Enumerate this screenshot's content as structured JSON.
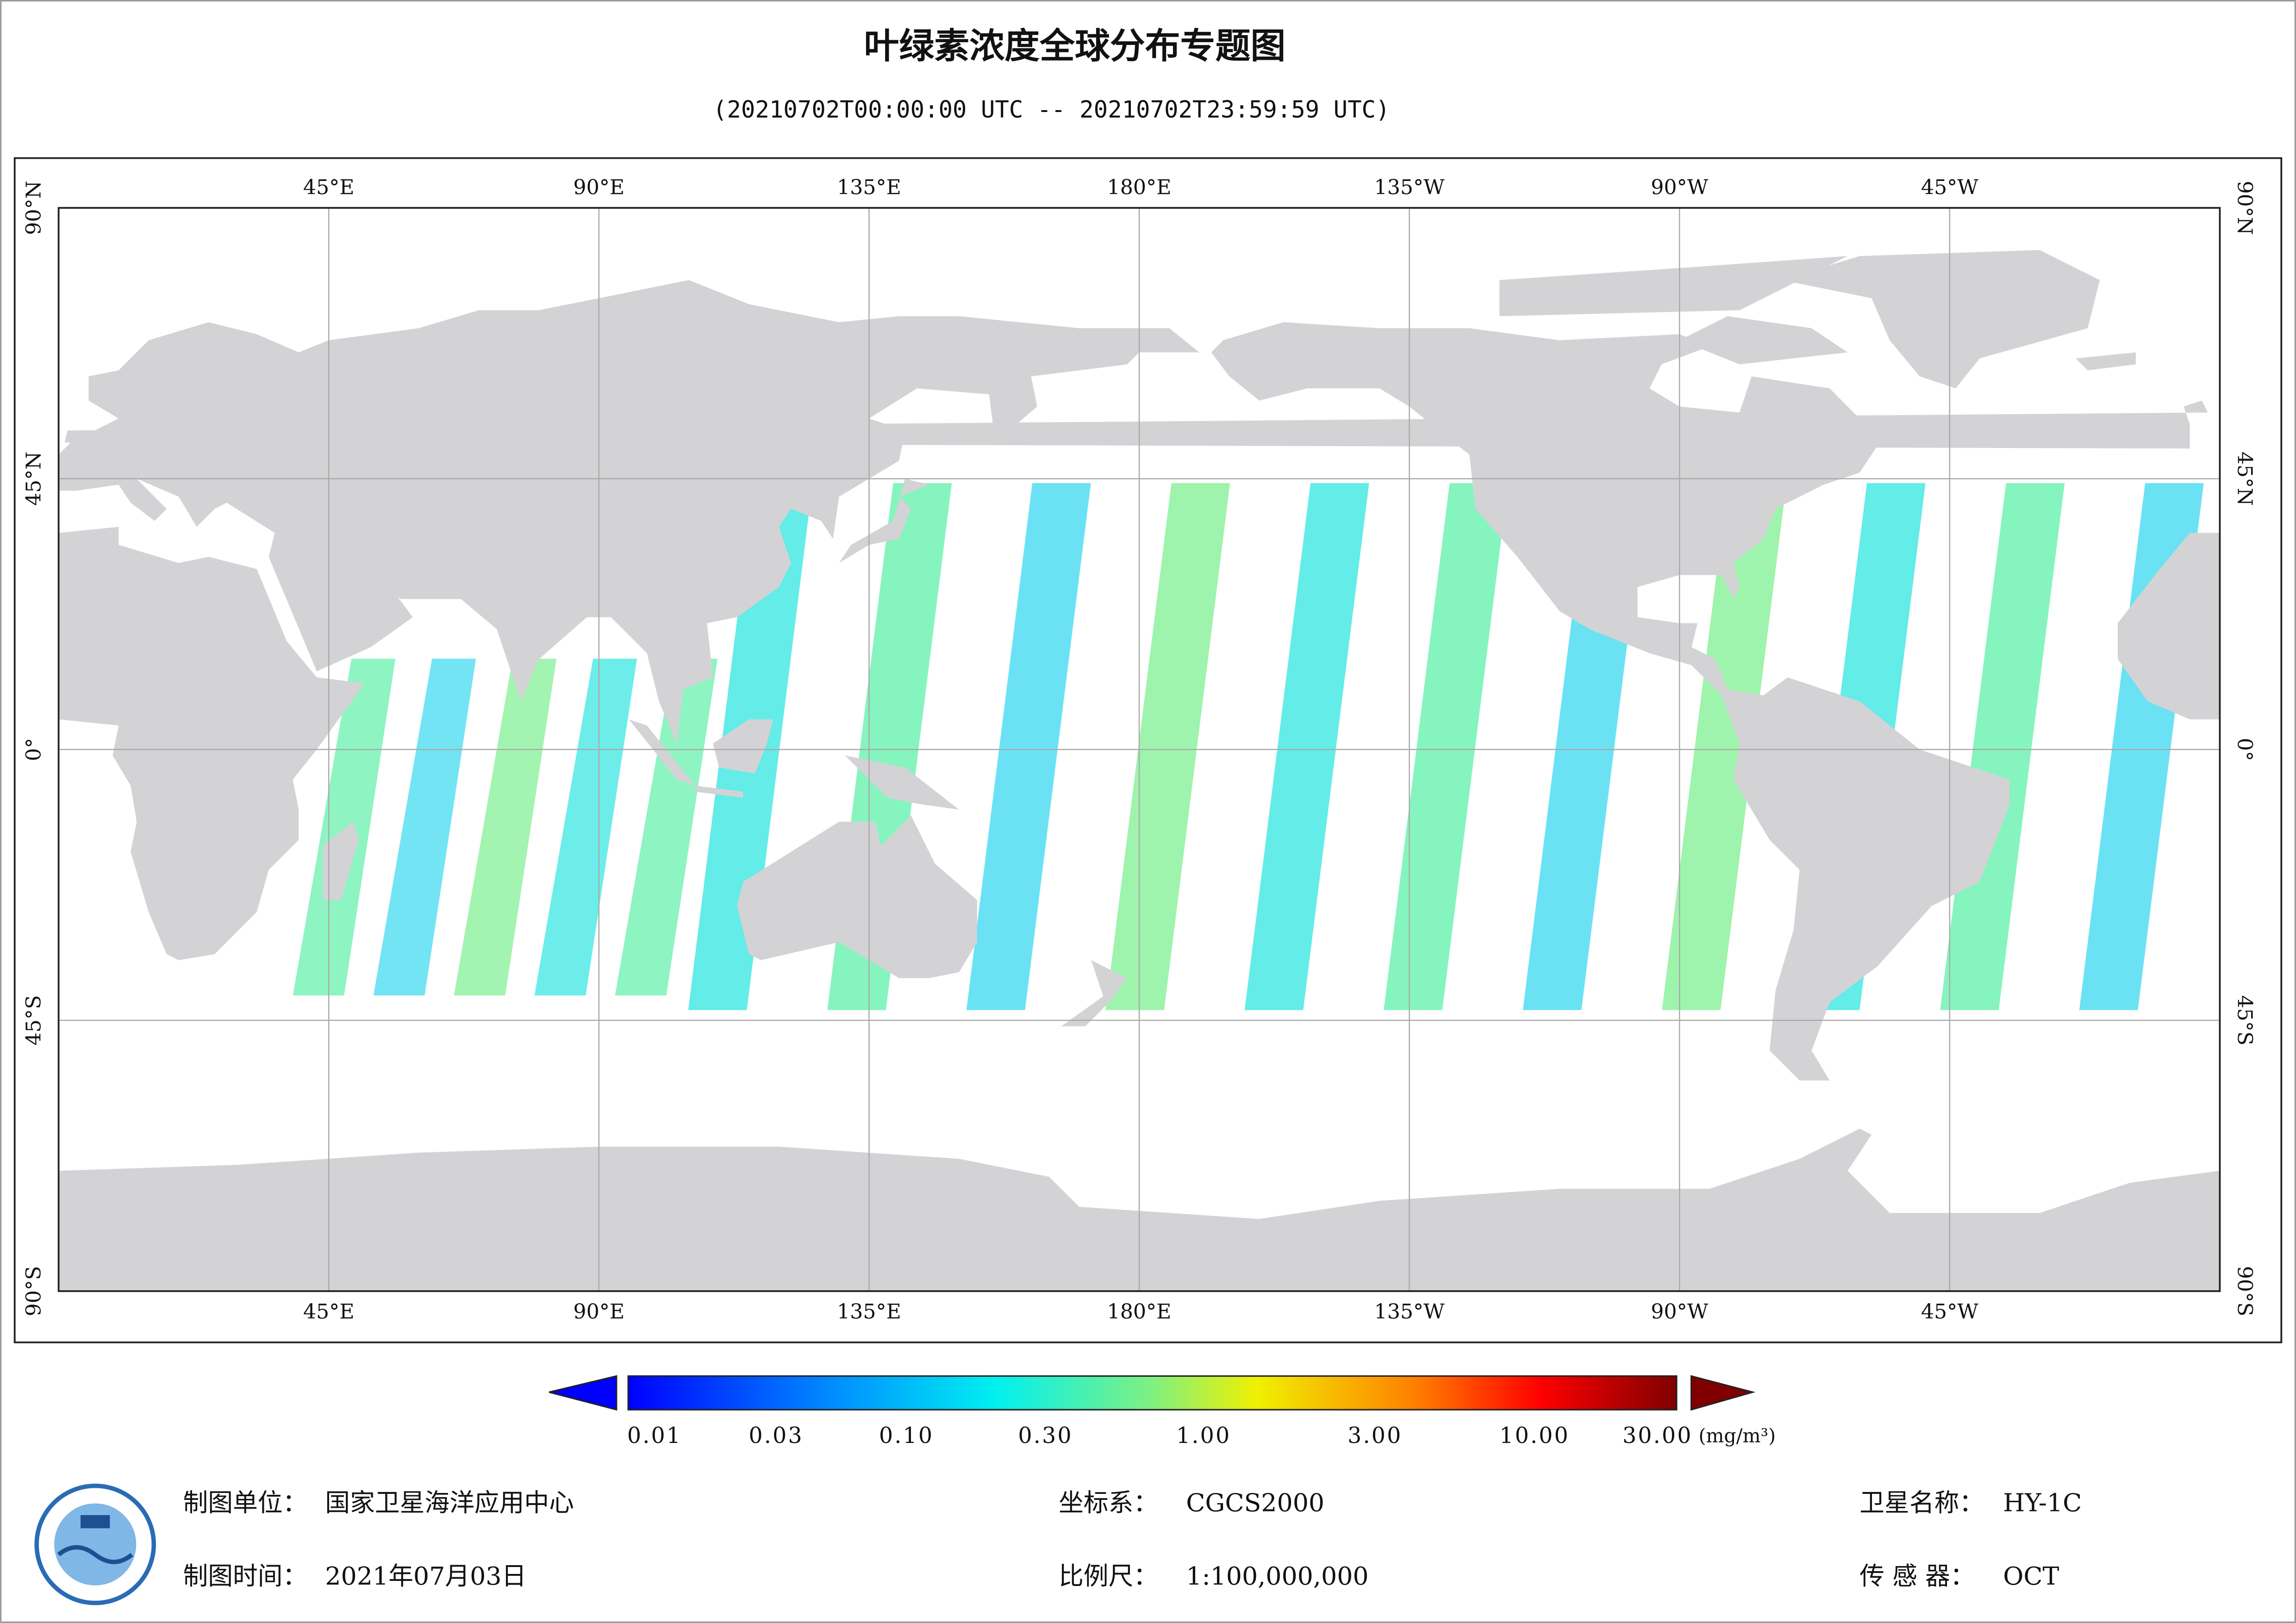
{
  "title": "叶绿素浓度全球分布专题图",
  "subtitle": "(20210702T00:00:00 UTC -- 20210702T23:59:59 UTC)",
  "map": {
    "lon_labels": [
      "45°E",
      "90°E",
      "135°E",
      "180°E",
      "135°W",
      "90°W",
      "45°W"
    ],
    "lat_labels": [
      "90°N",
      "45°N",
      "0°",
      "45°S",
      "90°S"
    ]
  },
  "colorbar": {
    "ticks": [
      "0.01",
      "0.03",
      "0.10",
      "0.30",
      "1.00",
      "3.00",
      "10.00",
      "30.00"
    ],
    "unit": "(mg/m³)"
  },
  "footer": {
    "unit": {
      "label": "制图单位：",
      "value": "国家卫星海洋应用中心"
    },
    "time": {
      "label": "制图时间：",
      "value": "2021年07月03日"
    },
    "crs": {
      "label": "坐标系：",
      "value": "CGCS2000"
    },
    "scale": {
      "label": "比例尺：",
      "value": "1:100,000,000"
    },
    "satellite": {
      "label": "卫星名称：",
      "value": "HY-1C"
    },
    "sensor": {
      "label": "传 感 器：",
      "value": "OCT"
    }
  }
}
